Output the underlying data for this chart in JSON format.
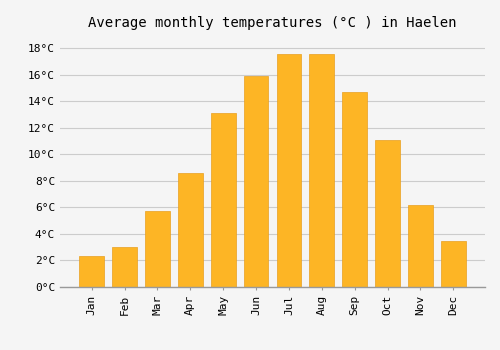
{
  "title": "Average monthly temperatures (°C ) in Haelen",
  "months": [
    "Jan",
    "Feb",
    "Mar",
    "Apr",
    "May",
    "Jun",
    "Jul",
    "Aug",
    "Sep",
    "Oct",
    "Nov",
    "Dec"
  ],
  "values": [
    2.3,
    3.0,
    5.7,
    8.6,
    13.1,
    15.9,
    17.6,
    17.6,
    14.7,
    11.1,
    6.2,
    3.5
  ],
  "bar_color": "#FDB525",
  "bar_edge_color": "#E8A020",
  "background_color": "#F5F5F5",
  "grid_color": "#CCCCCC",
  "ytick_labels": [
    "0°C",
    "2°C",
    "4°C",
    "6°C",
    "8°C",
    "10°C",
    "12°C",
    "14°C",
    "16°C",
    "18°C"
  ],
  "ytick_values": [
    0,
    2,
    4,
    6,
    8,
    10,
    12,
    14,
    16,
    18
  ],
  "ylim": [
    0,
    19
  ],
  "title_fontsize": 10,
  "tick_fontsize": 8,
  "font_family": "monospace"
}
